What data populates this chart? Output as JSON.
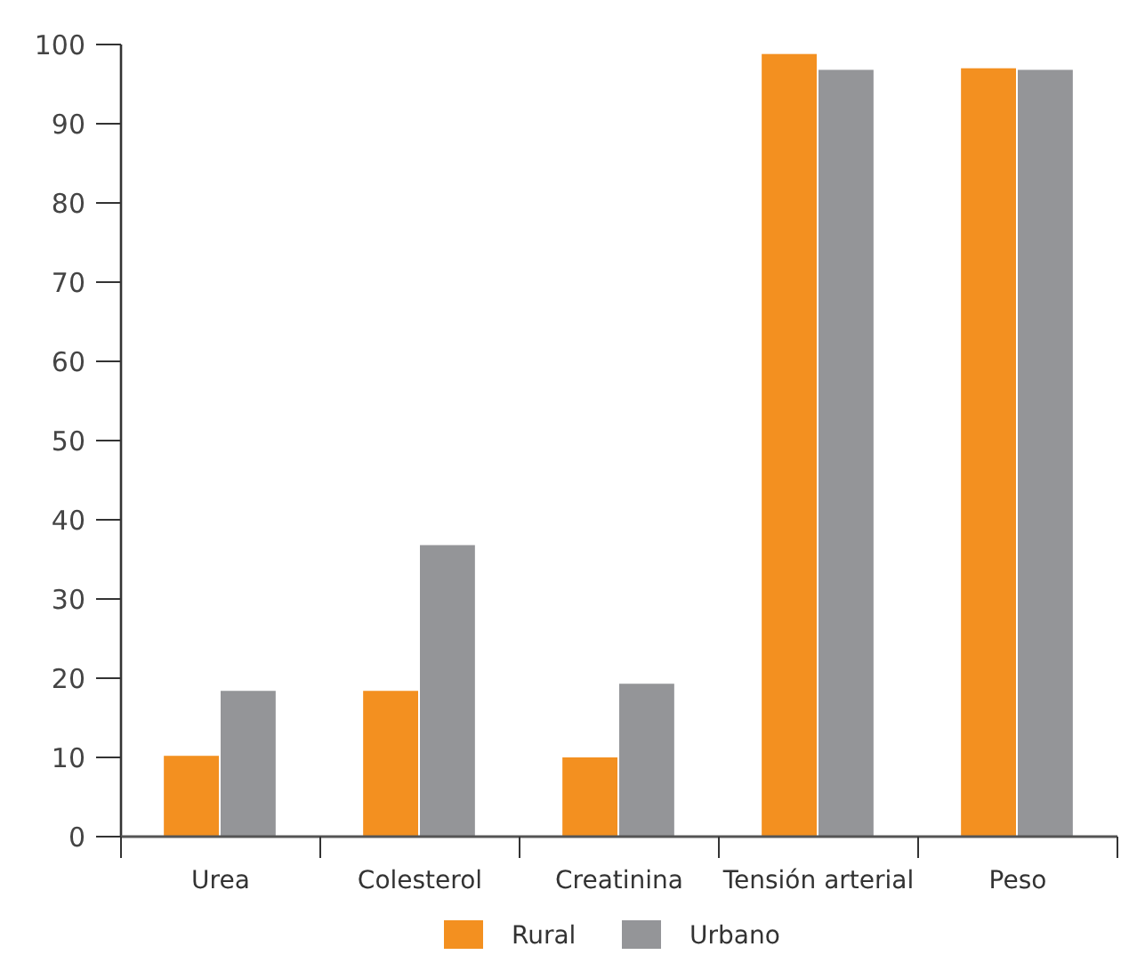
{
  "chart_data": {
    "type": "bar",
    "categories": [
      "Urea",
      "Colesterol",
      "Creatinina",
      "Tensión arterial",
      "Peso"
    ],
    "series": [
      {
        "name": "Rural",
        "color": "#f39020",
        "values": [
          10.2,
          18.4,
          10,
          98.8,
          97
        ]
      },
      {
        "name": "Urbano",
        "color": "#949598",
        "values": [
          18.4,
          36.8,
          19.3,
          96.8,
          96.8
        ]
      }
    ],
    "ylim": [
      0,
      100
    ],
    "yticks": [
      0,
      10,
      20,
      30,
      40,
      50,
      60,
      70,
      80,
      90,
      100
    ],
    "grid": false,
    "legend": "bottom"
  }
}
